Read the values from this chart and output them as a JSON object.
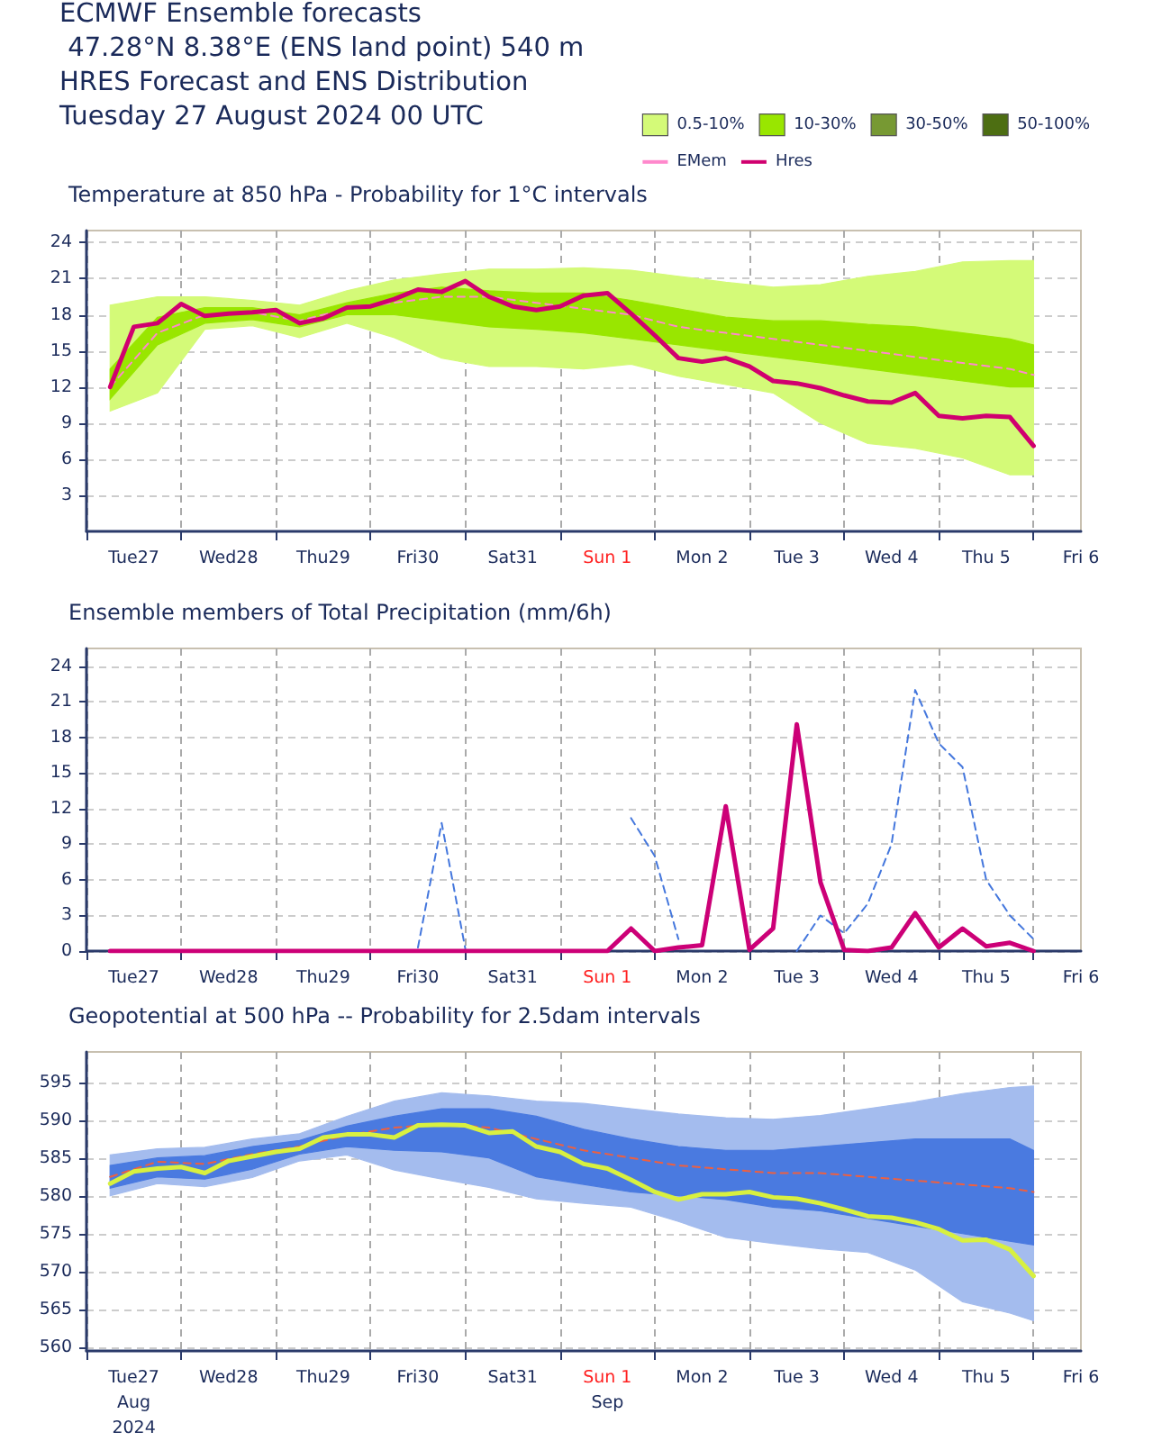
{
  "chart_data": [
    {
      "type": "line",
      "title": "Temperature at 850 hPa - Probability for 1°C intervals",
      "annotations": [
        "ECMWF Ensemble forecasts",
        " 47.28°N 8.38°E (ENS land point) 540 m",
        "HRES Forecast and ENS Distribution",
        "Tuesday 27 August 2024 00 UTC"
      ],
      "x": [
        "2024-08-27T06:00",
        "2024-08-27T12:00",
        "2024-08-27T18:00",
        "2024-08-28T00:00",
        "2024-08-28T06:00",
        "2024-08-28T12:00",
        "2024-08-28T18:00",
        "2024-08-29T00:00",
        "2024-08-29T06:00",
        "2024-08-29T12:00",
        "2024-08-29T18:00",
        "2024-08-30T00:00",
        "2024-08-30T06:00",
        "2024-08-30T12:00",
        "2024-08-30T18:00",
        "2024-08-31T00:00",
        "2024-08-31T06:00",
        "2024-08-31T12:00",
        "2024-08-31T18:00",
        "2024-09-01T00:00",
        "2024-09-01T06:00",
        "2024-09-01T12:00",
        "2024-09-01T18:00",
        "2024-09-02T00:00",
        "2024-09-02T06:00",
        "2024-09-02T12:00",
        "2024-09-02T18:00",
        "2024-09-03T00:00",
        "2024-09-03T06:00",
        "2024-09-03T12:00",
        "2024-09-03T18:00",
        "2024-09-04T00:00",
        "2024-09-04T06:00",
        "2024-09-04T12:00",
        "2024-09-04T18:00",
        "2024-09-05T00:00",
        "2024-09-05T06:00",
        "2024-09-05T12:00",
        "2024-09-05T18:00",
        "2024-09-06T00:00"
      ],
      "series": [
        {
          "type": "line",
          "name": "0.5-10%",
          "values": [
            null,
            null,
            null,
            null,
            null,
            null,
            null,
            null,
            null,
            null,
            null,
            null,
            null,
            null,
            null,
            null,
            null,
            null,
            null,
            null,
            null
          ],
          "color": "#d4fa78",
          "x": [
            "2024-08-27T06:00",
            "2024-08-27T18:00",
            "2024-08-28T06:00",
            "2024-08-28T18:00",
            "2024-08-29T06:00",
            "2024-08-29T18:00",
            "2024-08-30T06:00",
            "2024-08-30T18:00",
            "2024-08-31T06:00",
            "2024-08-31T18:00",
            "2024-09-01T06:00",
            "2024-09-01T18:00",
            "2024-09-02T06:00",
            "2024-09-02T18:00",
            "2024-09-03T06:00",
            "2024-09-03T18:00",
            "2024-09-04T06:00",
            "2024-09-04T18:00",
            "2024-09-05T06:00",
            "2024-09-05T18:00",
            "2024-09-06T00:00"
          ],
          "lower": [
            10.0,
            11.5,
            16.8,
            17.1,
            16.1,
            17.3,
            16.1,
            14.4,
            13.7,
            13.7,
            13.5,
            13.9,
            12.9,
            12.2,
            11.5,
            9.0,
            7.3,
            6.9,
            6.1,
            4.7,
            4.7
          ],
          "upper": [
            18.8,
            19.5,
            19.5,
            19.2,
            18.8,
            20.0,
            20.9,
            21.4,
            21.8,
            21.8,
            21.9,
            21.7,
            21.2,
            20.7,
            20.3,
            20.5,
            21.2,
            21.6,
            22.4,
            22.5,
            22.5
          ]
        },
        {
          "type": "line",
          "name": "10-30%",
          "values": [
            null,
            null,
            null,
            null,
            null,
            null,
            null,
            null,
            null,
            null,
            null,
            null,
            null,
            null,
            null,
            null,
            null,
            null,
            null,
            null,
            null
          ],
          "color": "#99e600",
          "x": [
            "2024-08-27T06:00",
            "2024-08-27T18:00",
            "2024-08-28T06:00",
            "2024-08-28T18:00",
            "2024-08-29T06:00",
            "2024-08-29T18:00",
            "2024-08-30T06:00",
            "2024-08-30T18:00",
            "2024-08-31T06:00",
            "2024-08-31T18:00",
            "2024-09-01T06:00",
            "2024-09-01T18:00",
            "2024-09-02T06:00",
            "2024-09-02T18:00",
            "2024-09-03T06:00",
            "2024-09-03T18:00",
            "2024-09-04T06:00",
            "2024-09-04T18:00",
            "2024-09-05T06:00",
            "2024-09-05T18:00",
            "2024-09-06T00:00"
          ],
          "lower": [
            11.0,
            15.5,
            17.3,
            17.6,
            17.0,
            18.0,
            18.0,
            17.5,
            17.0,
            16.8,
            16.5,
            16.0,
            15.5,
            15.0,
            14.5,
            14.0,
            13.5,
            13.0,
            12.5,
            12.0,
            12.0
          ],
          "upper": [
            13.5,
            17.8,
            18.6,
            18.6,
            18.0,
            19.0,
            19.8,
            20.3,
            20.0,
            19.8,
            19.8,
            19.2,
            18.5,
            17.8,
            17.5,
            17.5,
            17.2,
            17.0,
            16.5,
            16.0,
            15.5
          ]
        },
        {
          "type": "area",
          "name": "30-50%",
          "color": "#779933",
          "values": [
            null,
            null,
            null,
            null,
            null,
            null,
            null,
            null,
            null,
            null,
            null,
            null,
            null,
            null,
            null,
            null,
            null,
            null,
            null,
            null,
            null,
            null,
            null,
            null,
            null,
            null,
            null,
            null,
            null,
            null,
            null,
            null,
            null,
            null,
            null,
            null,
            null,
            null,
            null,
            null
          ]
        },
        {
          "type": "area",
          "name": "50-100%",
          "color": "#4d6e12",
          "values": [
            null,
            null,
            null,
            null,
            null,
            null,
            null,
            null,
            null,
            null,
            null,
            null,
            null,
            null,
            null,
            null,
            null,
            null,
            null,
            null,
            null,
            null,
            null,
            null,
            null,
            null,
            null,
            null,
            null,
            null,
            null,
            null,
            null,
            null,
            null,
            null,
            null,
            null,
            null,
            null
          ]
        },
        {
          "type": "line",
          "name": "EMem",
          "color": "#ff88cc",
          "line_style": "dashed",
          "x": [
            "2024-08-27T06:00",
            "2024-08-27T18:00",
            "2024-08-28T06:00",
            "2024-08-28T18:00",
            "2024-08-29T06:00",
            "2024-08-29T18:00",
            "2024-08-30T06:00",
            "2024-08-30T18:00",
            "2024-08-31T06:00",
            "2024-08-31T18:00",
            "2024-09-01T06:00",
            "2024-09-01T18:00",
            "2024-09-02T06:00",
            "2024-09-02T18:00",
            "2024-09-03T06:00",
            "2024-09-03T18:00",
            "2024-09-04T06:00",
            "2024-09-04T18:00",
            "2024-09-05T06:00",
            "2024-09-05T18:00",
            "2024-09-06T00:00"
          ],
          "values": [
            12.0,
            16.5,
            18.0,
            18.2,
            17.5,
            18.5,
            19.0,
            19.5,
            19.5,
            19.0,
            18.5,
            18.0,
            17.0,
            16.5,
            16.0,
            15.5,
            15.0,
            14.5,
            14.0,
            13.5,
            13.0
          ]
        },
        {
          "type": "line",
          "name": "Hres",
          "color": "#d0006f",
          "line_style": "solid",
          "values": [
            12.0,
            17.0,
            17.3,
            18.9,
            17.9,
            18.1,
            18.2,
            18.4,
            17.3,
            17.7,
            18.6,
            18.7,
            19.3,
            20.1,
            19.9,
            20.8,
            19.5,
            18.7,
            18.4,
            18.7,
            19.6,
            19.8,
            18.1,
            16.3,
            14.4,
            14.1,
            14.4,
            13.7,
            12.5,
            12.3,
            11.9,
            11.3,
            10.8,
            10.7,
            11.5,
            9.6,
            9.4,
            9.6,
            9.5,
            7.1
          ]
        }
      ],
      "xlim": [
        "2024-08-27T00:00",
        "2024-09-06T12:00"
      ],
      "xticks": [
        {
          "value": "2024-08-27T00:00",
          "label": null
        },
        {
          "value": "2024-08-27T12:00",
          "label": "Tue27"
        },
        {
          "value": "2024-08-28T00:00",
          "label": null
        },
        {
          "value": "2024-08-28T12:00",
          "label": "Wed28"
        },
        {
          "value": "2024-08-29T00:00",
          "label": null
        },
        {
          "value": "2024-08-29T12:00",
          "label": "Thu29"
        },
        {
          "value": "2024-08-30T00:00",
          "label": null
        },
        {
          "value": "2024-08-30T12:00",
          "label": "Fri30"
        },
        {
          "value": "2024-08-31T00:00",
          "label": null
        },
        {
          "value": "2024-08-31T12:00",
          "label": "Sat31"
        },
        {
          "value": "2024-09-01T00:00",
          "label": null
        },
        {
          "value": "2024-09-01T12:00",
          "label": "Sun 1"
        },
        {
          "value": "2024-09-02T00:00",
          "label": null
        },
        {
          "value": "2024-09-02T12:00",
          "label": "Mon 2"
        },
        {
          "value": "2024-09-03T00:00",
          "label": null
        },
        {
          "value": "2024-09-03T12:00",
          "label": "Tue 3"
        },
        {
          "value": "2024-09-04T00:00",
          "label": null
        },
        {
          "value": "2024-09-04T12:00",
          "label": "Wed 4"
        },
        {
          "value": "2024-09-05T00:00",
          "label": null
        },
        {
          "value": "2024-09-05T12:00",
          "label": "Thu 5"
        },
        {
          "value": "2024-09-06T00:00",
          "label": null
        },
        {
          "value": "2024-09-06T12:00",
          "label": "Fri 6"
        }
      ],
      "ylim": [
        0,
        25
      ],
      "yticks": [
        3,
        6,
        9,
        12,
        15,
        18,
        21,
        24
      ],
      "grid": true,
      "legend": "top right",
      "marker": "none"
    },
    {
      "type": "line",
      "title": "Ensemble members of Total Precipitation (mm/6h)",
      "x": [
        "2024-08-27T06:00",
        "2024-08-27T12:00",
        "2024-08-27T18:00",
        "2024-08-28T00:00",
        "2024-08-28T06:00",
        "2024-08-28T12:00",
        "2024-08-28T18:00",
        "2024-08-29T00:00",
        "2024-08-29T06:00",
        "2024-08-29T12:00",
        "2024-08-29T18:00",
        "2024-08-30T00:00",
        "2024-08-30T06:00",
        "2024-08-30T12:00",
        "2024-08-30T18:00",
        "2024-08-31T00:00",
        "2024-08-31T06:00",
        "2024-08-31T12:00",
        "2024-08-31T18:00",
        "2024-09-01T00:00",
        "2024-09-01T06:00",
        "2024-09-01T12:00",
        "2024-09-01T18:00",
        "2024-09-02T00:00",
        "2024-09-02T06:00",
        "2024-09-02T12:00",
        "2024-09-02T18:00",
        "2024-09-03T00:00",
        "2024-09-03T06:00",
        "2024-09-03T12:00",
        "2024-09-03T18:00",
        "2024-09-04T00:00",
        "2024-09-04T06:00",
        "2024-09-04T12:00",
        "2024-09-04T18:00",
        "2024-09-05T00:00",
        "2024-09-05T06:00",
        "2024-09-05T12:00",
        "2024-09-05T18:00",
        "2024-09-06T00:00"
      ],
      "series": [
        {
          "type": "line",
          "color": "#4477dd",
          "line_style": "dashed",
          "values": [
            null,
            null,
            null,
            null,
            null,
            null,
            null,
            null,
            null,
            null,
            null,
            null,
            null,
            null,
            null,
            null,
            null,
            null,
            null,
            null,
            null,
            null,
            null,
            null,
            null,
            null,
            null,
            null,
            null,
            0,
            3.0,
            1.5,
            4.0,
            9.0,
            22.0,
            17.5,
            15.5,
            6.0,
            3.0,
            1.0
          ]
        },
        {
          "type": "line",
          "color": "#4477dd",
          "line_style": "dashed",
          "values": [
            null,
            null,
            null,
            null,
            null,
            null,
            null,
            null,
            null,
            null,
            null,
            null,
            null,
            0.3,
            10.8,
            0.2,
            null,
            null,
            null,
            null,
            null,
            null,
            11.2,
            8.0,
            1.0,
            null,
            null,
            null,
            null,
            null,
            null,
            null,
            null,
            null,
            null,
            null,
            null,
            null,
            null,
            null
          ]
        },
        {
          "type": "line",
          "color": "#cc0077",
          "line_style": "solid",
          "values": [
            0,
            0,
            0,
            0,
            0,
            0,
            0,
            0,
            0,
            0,
            0,
            0,
            0,
            0,
            0,
            0,
            0,
            0,
            0,
            0,
            0,
            0,
            1.9,
            0,
            0.3,
            0.5,
            12.2,
            0.1,
            1.9,
            19.1,
            5.8,
            0.1,
            0,
            0.3,
            3.2,
            0.3,
            1.9,
            0.4,
            0.7,
            0
          ]
        }
      ],
      "xlim": [
        "2024-08-27T00:00",
        "2024-09-06T12:00"
      ],
      "xticks": [
        {
          "value": "2024-08-27T00:00",
          "label": null
        },
        {
          "value": "2024-08-27T12:00",
          "label": "Tue27"
        },
        {
          "value": "2024-08-28T00:00",
          "label": null
        },
        {
          "value": "2024-08-28T12:00",
          "label": "Wed28"
        },
        {
          "value": "2024-08-29T00:00",
          "label": null
        },
        {
          "value": "2024-08-29T12:00",
          "label": "Thu29"
        },
        {
          "value": "2024-08-30T00:00",
          "label": null
        },
        {
          "value": "2024-08-30T12:00",
          "label": "Fri30"
        },
        {
          "value": "2024-08-31T00:00",
          "label": null
        },
        {
          "value": "2024-08-31T12:00",
          "label": "Sat31"
        },
        {
          "value": "2024-09-01T00:00",
          "label": null
        },
        {
          "value": "2024-09-01T12:00",
          "label": "Sun 1"
        },
        {
          "value": "2024-09-02T00:00",
          "label": null
        },
        {
          "value": "2024-09-02T12:00",
          "label": "Mon 2"
        },
        {
          "value": "2024-09-03T00:00",
          "label": null
        },
        {
          "value": "2024-09-03T12:00",
          "label": "Tue 3"
        },
        {
          "value": "2024-09-04T00:00",
          "label": null
        },
        {
          "value": "2024-09-04T12:00",
          "label": "Wed 4"
        },
        {
          "value": "2024-09-05T00:00",
          "label": null
        },
        {
          "value": "2024-09-05T12:00",
          "label": "Thu 5"
        },
        {
          "value": "2024-09-06T00:00",
          "label": null
        },
        {
          "value": "2024-09-06T12:00",
          "label": "Fri 6"
        }
      ],
      "ylim": [
        0,
        25.5
      ],
      "yticks": [
        0,
        3,
        6,
        9,
        12,
        15,
        18,
        21,
        24
      ],
      "grid": true,
      "marker": "none"
    },
    {
      "type": "line",
      "title": "Geopotential at 500 hPa -- Probability for 2.5dam intervals",
      "x": [
        "2024-08-27T06:00",
        "2024-08-27T12:00",
        "2024-08-27T18:00",
        "2024-08-28T00:00",
        "2024-08-28T06:00",
        "2024-08-28T12:00",
        "2024-08-28T18:00",
        "2024-08-29T00:00",
        "2024-08-29T06:00",
        "2024-08-29T12:00",
        "2024-08-29T18:00",
        "2024-08-30T00:00",
        "2024-08-30T06:00",
        "2024-08-30T12:00",
        "2024-08-30T18:00",
        "2024-08-31T00:00",
        "2024-08-31T06:00",
        "2024-08-31T12:00",
        "2024-08-31T18:00",
        "2024-09-01T00:00",
        "2024-09-01T06:00",
        "2024-09-01T12:00",
        "2024-09-01T18:00",
        "2024-09-02T00:00",
        "2024-09-02T06:00",
        "2024-09-02T12:00",
        "2024-09-02T18:00",
        "2024-09-03T00:00",
        "2024-09-03T06:00",
        "2024-09-03T12:00",
        "2024-09-03T18:00",
        "2024-09-04T00:00",
        "2024-09-04T06:00",
        "2024-09-04T12:00",
        "2024-09-04T18:00",
        "2024-09-05T00:00",
        "2024-09-05T06:00",
        "2024-09-05T12:00",
        "2024-09-05T18:00",
        "2024-09-06T00:00"
      ],
      "series": [
        {
          "type": "line",
          "color": "#a4bcee",
          "values": [
            null,
            null,
            null,
            null,
            null,
            null,
            null,
            null,
            null,
            null,
            null,
            null,
            null,
            null,
            null,
            null,
            null,
            null,
            null,
            null,
            null
          ],
          "x": [
            "2024-08-27T06:00",
            "2024-08-27T18:00",
            "2024-08-28T06:00",
            "2024-08-28T18:00",
            "2024-08-29T06:00",
            "2024-08-29T18:00",
            "2024-08-30T06:00",
            "2024-08-30T18:00",
            "2024-08-31T06:00",
            "2024-08-31T18:00",
            "2024-09-01T06:00",
            "2024-09-01T18:00",
            "2024-09-02T06:00",
            "2024-09-02T18:00",
            "2024-09-03T06:00",
            "2024-09-03T18:00",
            "2024-09-04T06:00",
            "2024-09-04T18:00",
            "2024-09-05T06:00",
            "2024-09-05T18:00",
            "2024-09-06T00:00"
          ],
          "lower": [
            580.0,
            581.6,
            581.2,
            582.4,
            584.6,
            585.4,
            583.4,
            582.2,
            581.1,
            579.6,
            579.0,
            578.5,
            576.6,
            574.5,
            573.7,
            573.0,
            572.5,
            570.2,
            566.0,
            564.5,
            563.5
          ],
          "upper": [
            585.4,
            586.2,
            586.4,
            587.5,
            588.2,
            590.5,
            592.5,
            593.6,
            593.2,
            592.5,
            592.2,
            591.5,
            590.8,
            590.3,
            590.1,
            590.6,
            591.5,
            592.4,
            593.5,
            594.3,
            594.5
          ]
        },
        {
          "type": "line",
          "color": "#4a7ae0",
          "values": [
            null,
            null,
            null,
            null,
            null,
            null,
            null,
            null,
            null,
            null,
            null,
            null,
            null,
            null,
            null,
            null,
            null,
            null,
            null,
            null,
            null
          ],
          "x": [
            "2024-08-27T06:00",
            "2024-08-27T18:00",
            "2024-08-28T06:00",
            "2024-08-28T18:00",
            "2024-08-29T06:00",
            "2024-08-29T18:00",
            "2024-08-30T06:00",
            "2024-08-30T18:00",
            "2024-08-31T06:00",
            "2024-08-31T18:00",
            "2024-09-01T06:00",
            "2024-09-01T18:00",
            "2024-09-02T06:00",
            "2024-09-02T18:00",
            "2024-09-03T06:00",
            "2024-09-03T18:00",
            "2024-09-04T06:00",
            "2024-09-04T18:00",
            "2024-09-05T06:00",
            "2024-09-05T18:00",
            "2024-09-06T00:00"
          ],
          "lower": [
            581.0,
            582.5,
            582.2,
            583.5,
            585.5,
            586.5,
            586.0,
            585.8,
            585.0,
            582.5,
            581.5,
            580.5,
            580.0,
            579.5,
            578.5,
            578.0,
            577.0,
            576.0,
            575.0,
            574.0,
            573.5
          ],
          "upper": [
            584.0,
            585.0,
            585.3,
            586.5,
            587.3,
            589.2,
            590.5,
            591.5,
            591.5,
            590.5,
            588.8,
            587.5,
            586.5,
            586.0,
            586.0,
            586.5,
            587.0,
            587.5,
            587.5,
            587.5,
            586.0
          ]
        },
        {
          "type": "line",
          "color": "#ee6040",
          "line_style": "dashed",
          "x": [
            "2024-08-27T06:00",
            "2024-08-27T18:00",
            "2024-08-28T06:00",
            "2024-08-28T18:00",
            "2024-08-29T06:00",
            "2024-08-29T18:00",
            "2024-08-30T06:00",
            "2024-08-30T18:00",
            "2024-08-31T06:00",
            "2024-08-31T18:00",
            "2024-09-01T06:00",
            "2024-09-01T18:00",
            "2024-09-02T06:00",
            "2024-09-02T18:00",
            "2024-09-03T06:00",
            "2024-09-03T18:00",
            "2024-09-04T06:00",
            "2024-09-04T18:00",
            "2024-09-05T06:00",
            "2024-09-05T18:00",
            "2024-09-06T00:00"
          ],
          "values": [
            582.5,
            584.5,
            584.2,
            585.5,
            586.5,
            588.0,
            589.0,
            589.5,
            589.0,
            587.5,
            586.0,
            585.0,
            584.0,
            583.5,
            583.0,
            583.0,
            582.5,
            582.0,
            581.5,
            581.0,
            580.5
          ]
        },
        {
          "type": "line",
          "color": "#d8f040",
          "line_style": "solid",
          "values": [
            581.6,
            583.2,
            583.6,
            583.8,
            583.0,
            584.6,
            585.2,
            585.8,
            586.2,
            587.7,
            588.1,
            588.1,
            587.7,
            589.3,
            589.4,
            589.3,
            588.3,
            588.5,
            586.5,
            585.8,
            584.2,
            583.6,
            582.1,
            580.5,
            579.5,
            580.2,
            580.2,
            580.5,
            579.8,
            579.6,
            579.0,
            578.2,
            577.3,
            577.1,
            576.5,
            575.6,
            574.1,
            574.2,
            572.9,
            569.4
          ]
        }
      ],
      "xlim": [
        "2024-08-27T00:00",
        "2024-09-06T12:00"
      ],
      "xticks": [
        {
          "value": "2024-08-27T00:00",
          "label": null
        },
        {
          "value": "2024-08-27T12:00",
          "label": "Tue27\nAug\n2024"
        },
        {
          "value": "2024-08-28T00:00",
          "label": null
        },
        {
          "value": "2024-08-28T12:00",
          "label": "Wed28"
        },
        {
          "value": "2024-08-29T00:00",
          "label": null
        },
        {
          "value": "2024-08-29T12:00",
          "label": "Thu29"
        },
        {
          "value": "2024-08-30T00:00",
          "label": null
        },
        {
          "value": "2024-08-30T12:00",
          "label": "Fri30"
        },
        {
          "value": "2024-08-31T00:00",
          "label": null
        },
        {
          "value": "2024-08-31T12:00",
          "label": "Sat31"
        },
        {
          "value": "2024-09-01T00:00",
          "label": null
        },
        {
          "value": "2024-09-01T12:00",
          "label": "Sun 1\nSep"
        },
        {
          "value": "2024-09-02T00:00",
          "label": null
        },
        {
          "value": "2024-09-02T12:00",
          "label": "Mon 2"
        },
        {
          "value": "2024-09-03T00:00",
          "label": null
        },
        {
          "value": "2024-09-03T12:00",
          "label": "Tue 3"
        },
        {
          "value": "2024-09-04T00:00",
          "label": null
        },
        {
          "value": "2024-09-04T12:00",
          "label": "Wed 4"
        },
        {
          "value": "2024-09-05T00:00",
          "label": null
        },
        {
          "value": "2024-09-05T12:00",
          "label": "Thu 5"
        },
        {
          "value": "2024-09-06T00:00",
          "label": null
        },
        {
          "value": "2024-09-06T12:00",
          "label": "Fri 6"
        }
      ],
      "ylim": [
        559.5,
        599
      ],
      "yticks": [
        560,
        565,
        570,
        575,
        580,
        585,
        590,
        595
      ],
      "grid": true,
      "marker": "none"
    }
  ]
}
